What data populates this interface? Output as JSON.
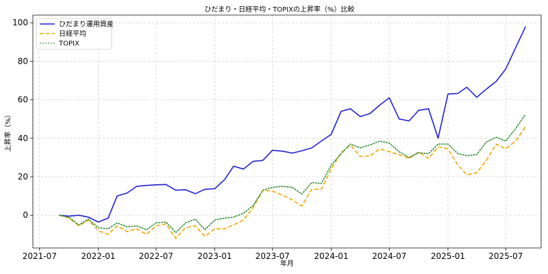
{
  "chart_data": {
    "type": "line",
    "title": "ひだまり・日経平均・TOPIXの上昇率（%）比較",
    "xlabel": "年月",
    "ylabel": "上昇率（%）",
    "x_tick_labels": [
      "2021-07",
      "2022-01",
      "2022-07",
      "2023-01",
      "2023-07",
      "2024-01",
      "2024-07",
      "2025-01",
      "2025-07"
    ],
    "y_ticks": [
      0,
      20,
      40,
      60,
      80,
      100
    ],
    "xlim": [
      "2021-06-10",
      "2025-10-20"
    ],
    "ylim": [
      -17,
      104
    ],
    "grid": true,
    "legend_position": "top-left",
    "x": [
      "2021-09",
      "2021-10",
      "2021-11",
      "2021-12",
      "2022-01",
      "2022-02",
      "2022-03",
      "2022-04",
      "2022-05",
      "2022-06",
      "2022-07",
      "2022-08",
      "2022-09",
      "2022-10",
      "2022-11",
      "2022-12",
      "2023-01",
      "2023-02",
      "2023-03",
      "2023-04",
      "2023-05",
      "2023-06",
      "2023-07",
      "2023-08",
      "2023-09",
      "2023-10",
      "2023-11",
      "2023-12",
      "2024-01",
      "2024-02",
      "2024-03",
      "2024-04",
      "2024-05",
      "2024-06",
      "2024-07",
      "2024-08",
      "2024-09",
      "2024-10",
      "2024-11",
      "2024-12",
      "2025-01",
      "2025-02",
      "2025-03",
      "2025-04",
      "2025-05",
      "2025-06",
      "2025-07",
      "2025-08",
      "2025-09"
    ],
    "series": [
      {
        "name": "ひだまり運用資産",
        "color": "#1f1fd0",
        "style": "solid",
        "values": [
          0,
          -0.5,
          0,
          -1,
          -3.5,
          -1.5,
          10,
          11.5,
          15,
          15.5,
          15.8,
          16,
          13,
          13.3,
          11.2,
          13.5,
          13.8,
          18.5,
          25.5,
          24,
          28,
          28.5,
          33.8,
          33.3,
          32.3,
          33.5,
          35,
          38.5,
          42,
          54,
          55.3,
          51.3,
          52.8,
          57.2,
          61,
          50,
          49,
          54.5,
          55.3,
          40,
          63,
          63.3,
          66.5,
          61.3,
          65.5,
          69.5,
          76,
          87,
          98
        ]
      },
      {
        "name": "日経平均",
        "color": "#f0a500",
        "style": "dashed",
        "values": [
          0,
          -1.5,
          -5.5,
          -2.5,
          -8,
          -10,
          -5.5,
          -8.5,
          -7,
          -10,
          -5.5,
          -4.5,
          -12,
          -6.5,
          -5.5,
          -11,
          -7,
          -7,
          -5,
          -2.5,
          4,
          13,
          12.5,
          10.5,
          8,
          4.8,
          13.5,
          13.5,
          24,
          32.5,
          36.5,
          30.5,
          30.8,
          34.5,
          33,
          31.5,
          29.5,
          32.8,
          29.5,
          35.5,
          34.5,
          26,
          21,
          22,
          28.5,
          37,
          34.5,
          38.5,
          46
        ]
      },
      {
        "name": "TOPIX",
        "color": "#2e8b2e",
        "style": "dotted",
        "values": [
          0,
          -1,
          -5,
          -2,
          -6.5,
          -7,
          -4,
          -6,
          -5.5,
          -7.5,
          -4,
          -3.5,
          -9,
          -4,
          -2,
          -7.5,
          -2.5,
          -1.5,
          -1,
          1,
          5,
          13,
          14.5,
          15,
          14.5,
          11,
          17,
          16.5,
          26,
          32,
          37,
          35,
          36.5,
          38.5,
          37.5,
          33,
          30,
          32.5,
          32,
          37,
          37,
          32,
          31,
          31.5,
          38,
          40.5,
          38.5,
          45,
          52.5
        ]
      }
    ]
  }
}
